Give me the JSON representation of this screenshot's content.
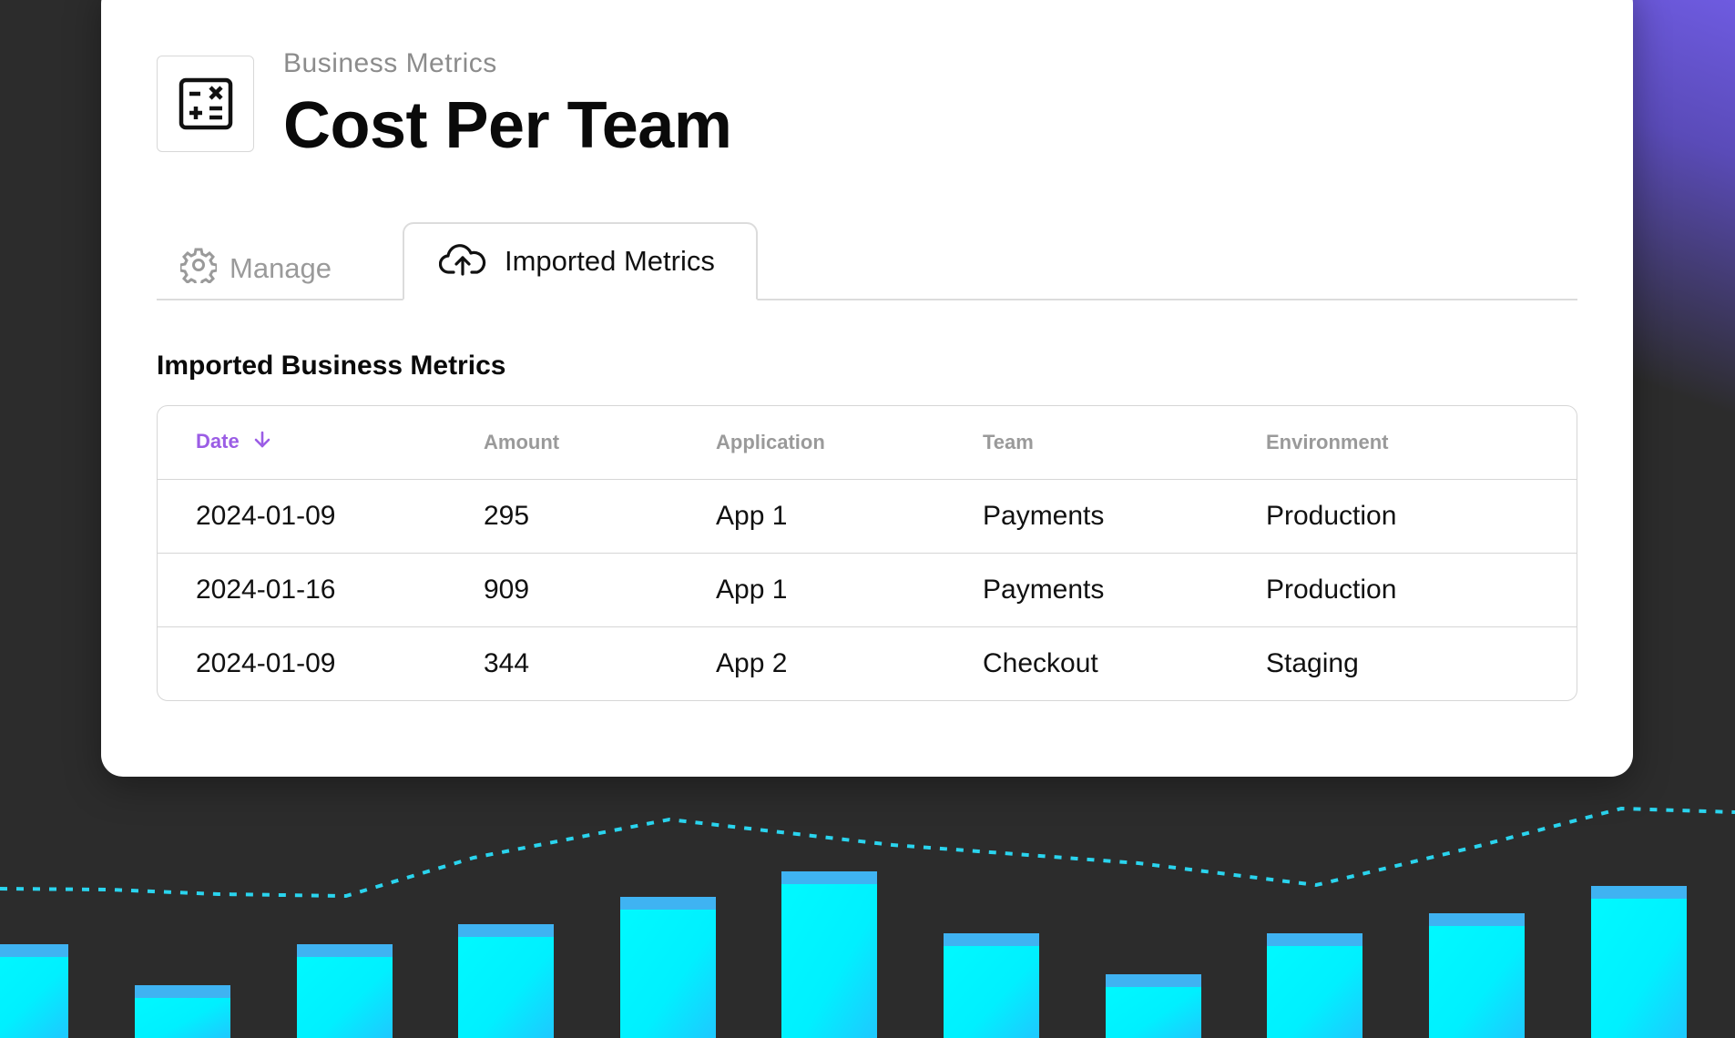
{
  "header": {
    "breadcrumb": "Business Metrics",
    "title": "Cost Per Team",
    "icon": "calculator-icon"
  },
  "tabs": [
    {
      "label": "Manage",
      "icon": "gear-icon",
      "active": false
    },
    {
      "label": "Imported Metrics",
      "icon": "cloud-upload-icon",
      "active": true
    }
  ],
  "section": {
    "title": "Imported Business Metrics"
  },
  "table": {
    "columns": [
      "Date",
      "Amount",
      "Application",
      "Team",
      "Environment"
    ],
    "sorted_column": "Date",
    "sort_direction": "descending",
    "rows": [
      [
        "2024-01-09",
        "295",
        "App 1",
        "Payments",
        "Production"
      ],
      [
        "2024-01-16",
        "909",
        "App 1",
        "Payments",
        "Production"
      ],
      [
        "2024-01-09",
        "344",
        "App 2",
        "Checkout",
        "Staging"
      ]
    ]
  },
  "colors": {
    "accent": "#9b5de5",
    "background": "#2c2c2c",
    "bar_fill": "#00f5ff",
    "bar_top": "#3fb3f2",
    "dashed_line": "#2ad4ee",
    "glow": "#6e5be0"
  }
}
